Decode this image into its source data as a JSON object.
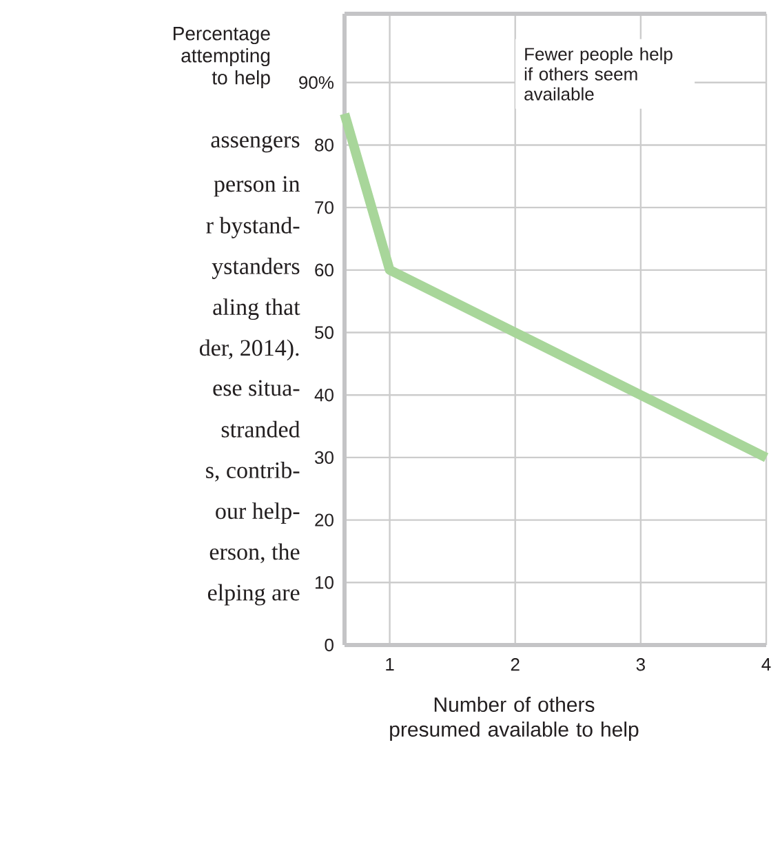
{
  "chart_data": {
    "type": "line",
    "ylabel": "Percentage attempting to help",
    "xlabel": "Number of others presumed available to help",
    "x": [
      0.64,
      1,
      2,
      3,
      4
    ],
    "values": [
      85,
      60,
      50,
      40,
      30
    ],
    "color": "#a8d69a",
    "xlim": [
      0.64,
      4
    ],
    "xticks": [
      1,
      2,
      3,
      4
    ],
    "ylim": [
      0,
      101
    ],
    "yticks": [
      0,
      10,
      20,
      30,
      40,
      50,
      60,
      70,
      80,
      {
        "value": 90,
        "label": "90%"
      }
    ],
    "grid": true,
    "marker": "none",
    "line_style": "solid",
    "annotations": [
      "Fewer people help if others seem available",
      "assengers",
      "person in",
      "r bystand-",
      "ystanders",
      "aling that",
      "der, 2014).",
      "ese situa-",
      "stranded",
      "s, contrib-",
      "our help-",
      "erson, the",
      "elping are"
    ]
  }
}
